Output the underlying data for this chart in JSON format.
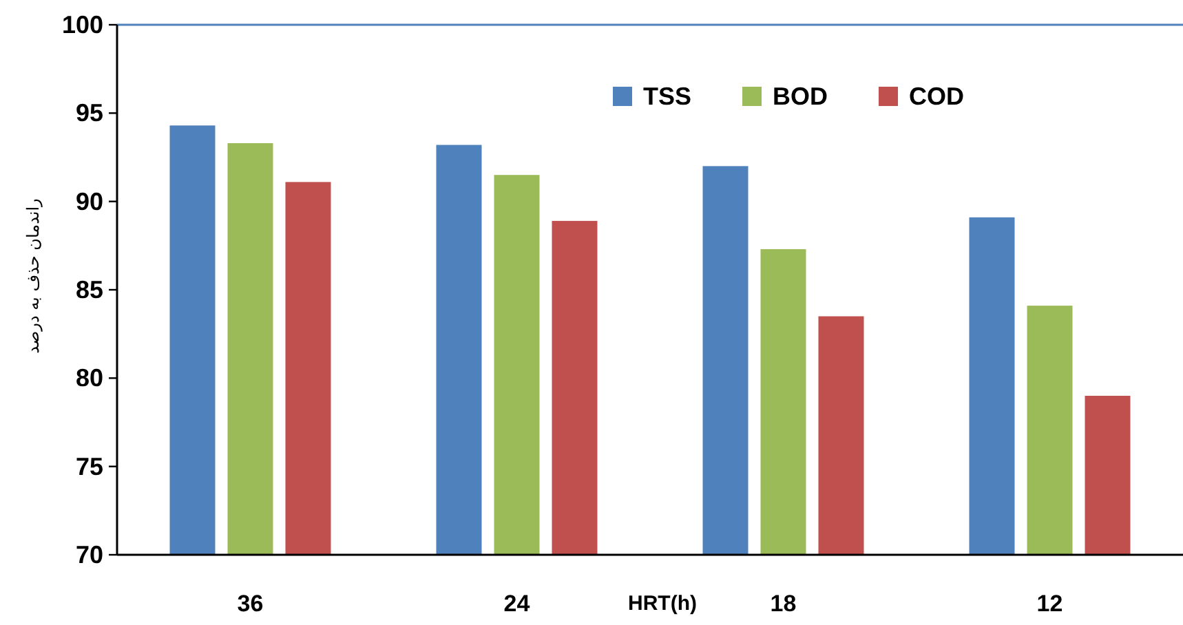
{
  "chart_data": {
    "type": "bar",
    "xlabel": "HRT(h)",
    "ylabel": "راندمان حذف به درصد",
    "categories": [
      "36",
      "24",
      "18",
      "12"
    ],
    "series": [
      {
        "name": "TSS",
        "color": "#4f81bd",
        "values": [
          94.3,
          93.2,
          92.0,
          89.1
        ]
      },
      {
        "name": "BOD",
        "color": "#9bbb59",
        "values": [
          93.3,
          91.5,
          87.3,
          84.1
        ]
      },
      {
        "name": "COD",
        "color": "#c0504d",
        "values": [
          91.1,
          88.9,
          83.5,
          79.0
        ]
      }
    ],
    "ylim": [
      70,
      100
    ],
    "yticks": [
      70,
      75,
      80,
      85,
      90,
      95,
      100
    ],
    "legend": "top",
    "grid": false
  }
}
